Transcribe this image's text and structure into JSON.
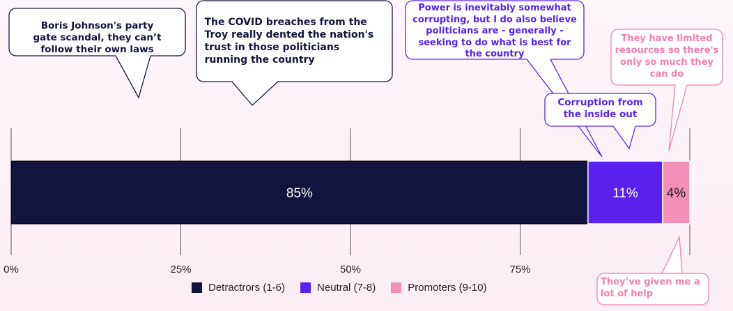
{
  "chart_data": {
    "type": "bar",
    "orientation": "horizontal-stacked",
    "categories": [
      ""
    ],
    "series": [
      {
        "name": "Detractrors (1-6)",
        "values": [
          85
        ],
        "label": "85%",
        "color": "#12143f"
      },
      {
        "name": "Neutral (7-8)",
        "values": [
          11
        ],
        "label": "11%",
        "color": "#5a22ee"
      },
      {
        "name": "Promoters (9-10)",
        "values": [
          4
        ],
        "label": "4%",
        "color": "#f48fb8"
      }
    ],
    "xlim": [
      0,
      100
    ],
    "x_ticks": [
      0,
      25,
      50,
      75
    ],
    "x_tick_labels": [
      "0%",
      "25%",
      "50%",
      "75%"
    ],
    "grid": true,
    "legend_position": "bottom",
    "annotations": [
      {
        "text": "Boris Johnson's party gate scandal, they can’t follow their own laws",
        "style": "dark"
      },
      {
        "text": "The COVID breaches from the Troy really dented the nation's trust in those politicians running the country",
        "style": "dark"
      },
      {
        "text": "Power is inevitably somewhat corrupting, but I do also believe politicians are - generally - seeking to do what is best for the country",
        "style": "purple"
      },
      {
        "text": "Corruption from the inside out",
        "style": "purple"
      },
      {
        "text": "They have limited resources so there's only so much they can do",
        "style": "pink"
      },
      {
        "text": "They’ve given me a lot of help",
        "style": "pink"
      }
    ]
  }
}
